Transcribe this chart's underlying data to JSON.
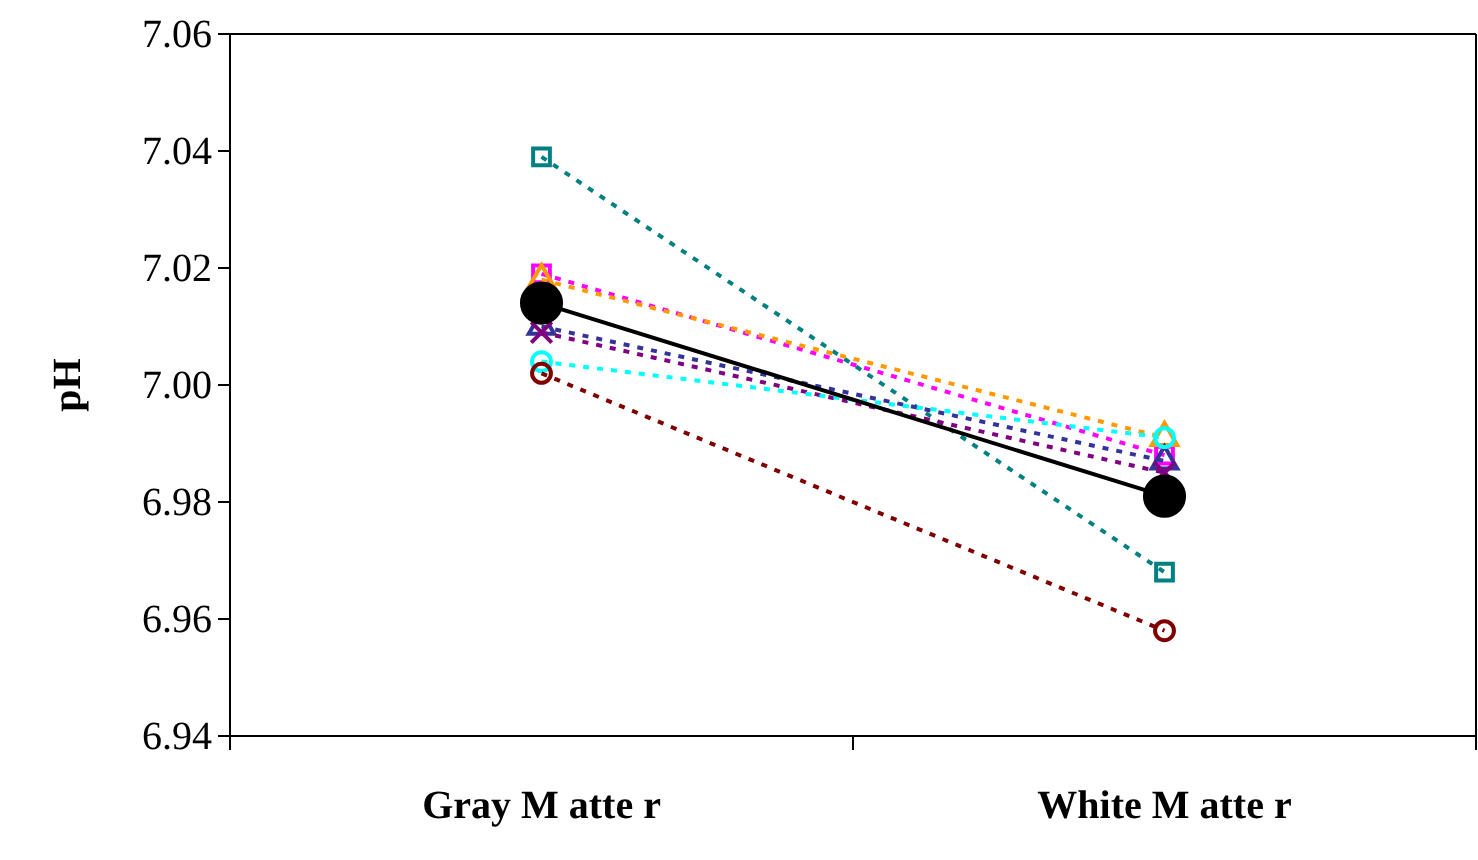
{
  "chart_data": {
    "type": "line",
    "ylabel": "pH",
    "categories": [
      "Gray M atte r",
      "White M atte r"
    ],
    "ylim": [
      6.94,
      7.06
    ],
    "yticks": [
      6.94,
      6.96,
      6.98,
      {
        "value": 7,
        "label": "7.00"
      },
      7.02,
      7.04,
      7.06
    ],
    "grid": false,
    "series": [
      {
        "color": "#008080",
        "values": [
          7.039,
          6.968
        ],
        "marker": "square",
        "line_style": "dotted"
      },
      {
        "color": "#ff00ff",
        "values": [
          7.019,
          6.988
        ],
        "marker": "square",
        "line_style": "dotted"
      },
      {
        "color": "#ff9900",
        "values": [
          7.018,
          6.991
        ],
        "marker": "triangle",
        "line_style": "dotted"
      },
      {
        "color": "#333399",
        "values": [
          7.01,
          6.987
        ],
        "marker": "triangle",
        "line_style": "dotted"
      },
      {
        "color": "#800080",
        "values": [
          7.009,
          6.985
        ],
        "marker": "cross",
        "line_style": "dotted"
      },
      {
        "color": "#00ffff",
        "values": [
          7.004,
          6.991
        ],
        "marker": "circle",
        "line_style": "dotted"
      },
      {
        "color": "#800000",
        "values": [
          7.002,
          6.958
        ],
        "marker": "circle",
        "line_style": "dotted"
      },
      {
        "color": "#000000",
        "values": [
          7.014,
          6.981
        ],
        "marker": "circle",
        "line_style": "solid"
      }
    ]
  }
}
